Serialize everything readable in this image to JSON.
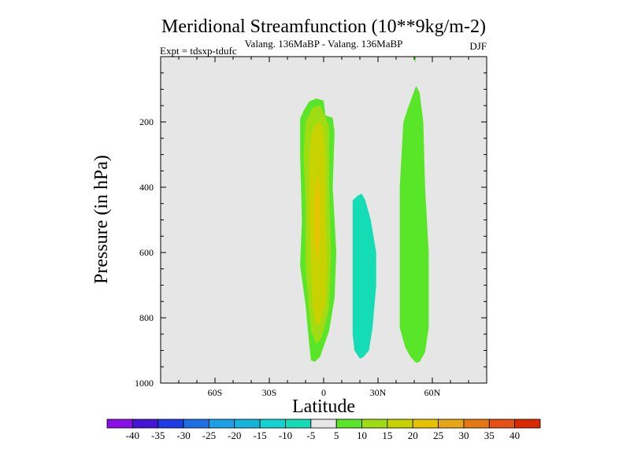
{
  "chart_data": {
    "type": "contour",
    "title": "Meridional Streamfunction (10**9kg/m-2)",
    "subtitle": "Valang. 136MaBP - Valang.  136MaBP",
    "expt_label": "Expt = tdsxp-tdufc",
    "season": "DJF",
    "xlabel": "Latitude",
    "ylabel": "Pressure (in hPa)",
    "xlim": [
      -90,
      90
    ],
    "ylim": [
      0,
      1000
    ],
    "y_inverted": true,
    "x_ticks": [
      {
        "value": -60,
        "label": "60S"
      },
      {
        "value": -30,
        "label": "30S"
      },
      {
        "value": 0,
        "label": "0"
      },
      {
        "value": 30,
        "label": "30N"
      },
      {
        "value": 60,
        "label": "60N"
      }
    ],
    "y_ticks": [
      {
        "value": 200,
        "label": "200"
      },
      {
        "value": 400,
        "label": "400"
      },
      {
        "value": 600,
        "label": "600"
      },
      {
        "value": 800,
        "label": "800"
      },
      {
        "value": 1000,
        "label": "1000"
      }
    ],
    "background_color": "#e6e6e6",
    "levels": [
      {
        "range": "< -40",
        "color": "#8a0ee6"
      },
      {
        "range": "-40 to -35",
        "color": "#4614d6"
      },
      {
        "range": "-35 to -30",
        "color": "#1e3ce6"
      },
      {
        "range": "-30 to -25",
        "color": "#1e6ee6"
      },
      {
        "range": "-25 to -20",
        "color": "#1ea0e6"
      },
      {
        "range": "-20 to -15",
        "color": "#14b4dc"
      },
      {
        "range": "-15 to -10",
        "color": "#14d2d2"
      },
      {
        "range": "-10 to -5",
        "color": "#14dcb4"
      },
      {
        "range": "-5 to 5",
        "color": "#e6e6e6"
      },
      {
        "range": "5 to 10",
        "color": "#5ae628"
      },
      {
        "range": "10 to 15",
        "color": "#a0dc14"
      },
      {
        "range": "15 to 20",
        "color": "#c8d200"
      },
      {
        "range": "20 to 25",
        "color": "#e6c300"
      },
      {
        "range": "25 to 30",
        "color": "#e6a514"
      },
      {
        "range": "30 to 35",
        "color": "#e67814"
      },
      {
        "range": "35 to 40",
        "color": "#e65014"
      },
      {
        "range": "> 40",
        "color": "#dc2800"
      }
    ],
    "colorbar_labels": [
      "-40",
      "-35",
      "-30",
      "-25",
      "-20",
      "-15",
      "-10",
      "-5",
      "5",
      "10",
      "15",
      "20",
      "25",
      "30",
      "35",
      "40"
    ],
    "shaded_regions": [
      {
        "name": "tropical-positive-5-10",
        "level": "5 to 10",
        "color": "#5ae628",
        "polygon": [
          [
            -8,
            137
          ],
          [
            -4,
            128
          ],
          [
            0,
            135
          ],
          [
            1,
            180
          ],
          [
            5,
            187
          ],
          [
            6,
            230
          ],
          [
            5,
            400
          ],
          [
            7,
            600
          ],
          [
            6,
            740
          ],
          [
            3,
            840
          ],
          [
            -2,
            920
          ],
          [
            -5,
            935
          ],
          [
            -7,
            930
          ],
          [
            -8,
            880
          ],
          [
            -10,
            760
          ],
          [
            -13,
            640
          ],
          [
            -12,
            500
          ],
          [
            -13,
            300
          ],
          [
            -13,
            190
          ],
          [
            -11,
            165
          ]
        ]
      },
      {
        "name": "tropical-positive-10-15",
        "level": "10 to 15",
        "color": "#a0dc14",
        "polygon": [
          [
            -6,
            155
          ],
          [
            -2,
            150
          ],
          [
            1,
            185
          ],
          [
            3,
            215
          ],
          [
            3,
            400
          ],
          [
            4,
            600
          ],
          [
            3,
            770
          ],
          [
            -1,
            860
          ],
          [
            -4,
            880
          ],
          [
            -7,
            840
          ],
          [
            -8,
            780
          ],
          [
            -10,
            650
          ],
          [
            -10,
            450
          ],
          [
            -11,
            300
          ],
          [
            -10,
            200
          ]
        ]
      },
      {
        "name": "tropical-positive-15-20",
        "level": "15 to 20",
        "color": "#c8d200",
        "polygon": [
          [
            -5,
            210
          ],
          [
            -2,
            200
          ],
          [
            0,
            220
          ],
          [
            1,
            320
          ],
          [
            1,
            500
          ],
          [
            2,
            650
          ],
          [
            1,
            760
          ],
          [
            -2,
            820
          ],
          [
            -4,
            825
          ],
          [
            -6,
            770
          ],
          [
            -7,
            650
          ],
          [
            -8,
            500
          ],
          [
            -8,
            330
          ],
          [
            -7,
            240
          ]
        ]
      },
      {
        "name": "tropical-positive-20-25",
        "level": "20 to 25",
        "color": "#e6c300",
        "polygon": [
          [
            -4,
            380
          ],
          [
            -3,
            370
          ],
          [
            -2,
            420
          ],
          [
            -2,
            500
          ],
          [
            -2,
            560
          ],
          [
            -3,
            615
          ],
          [
            -4,
            620
          ],
          [
            -5,
            570
          ],
          [
            -5,
            450
          ]
        ]
      },
      {
        "name": "subtropical-negative-10-5",
        "level": "-10 to -5",
        "color": "#14dcb4",
        "polygon": [
          [
            19,
            425
          ],
          [
            21,
            420
          ],
          [
            23,
            440
          ],
          [
            26,
            500
          ],
          [
            29,
            600
          ],
          [
            29,
            700
          ],
          [
            27,
            830
          ],
          [
            25,
            900
          ],
          [
            22,
            920
          ],
          [
            20,
            925
          ],
          [
            17,
            900
          ],
          [
            16,
            850
          ],
          [
            16,
            750
          ],
          [
            16,
            550
          ],
          [
            16,
            440
          ]
        ]
      },
      {
        "name": "midlatitude-positive-5-10",
        "level": "5 to 10",
        "color": "#5ae628",
        "polygon": [
          [
            51,
            90
          ],
          [
            53,
            110
          ],
          [
            55,
            200
          ],
          [
            56,
            400
          ],
          [
            58,
            600
          ],
          [
            58,
            830
          ],
          [
            56,
            905
          ],
          [
            53,
            935
          ],
          [
            51,
            938
          ],
          [
            48,
            920
          ],
          [
            45,
            890
          ],
          [
            42,
            830
          ],
          [
            42,
            600
          ],
          [
            42,
            400
          ],
          [
            44,
            200
          ],
          [
            47,
            150
          ]
        ]
      },
      {
        "name": "top-sliver-5-10",
        "level": "5 to 10",
        "color": "#5ae628",
        "polygon": [
          [
            50,
            0
          ],
          [
            51,
            0
          ],
          [
            50.6,
            18
          ],
          [
            50.4,
            18
          ]
        ]
      }
    ]
  }
}
